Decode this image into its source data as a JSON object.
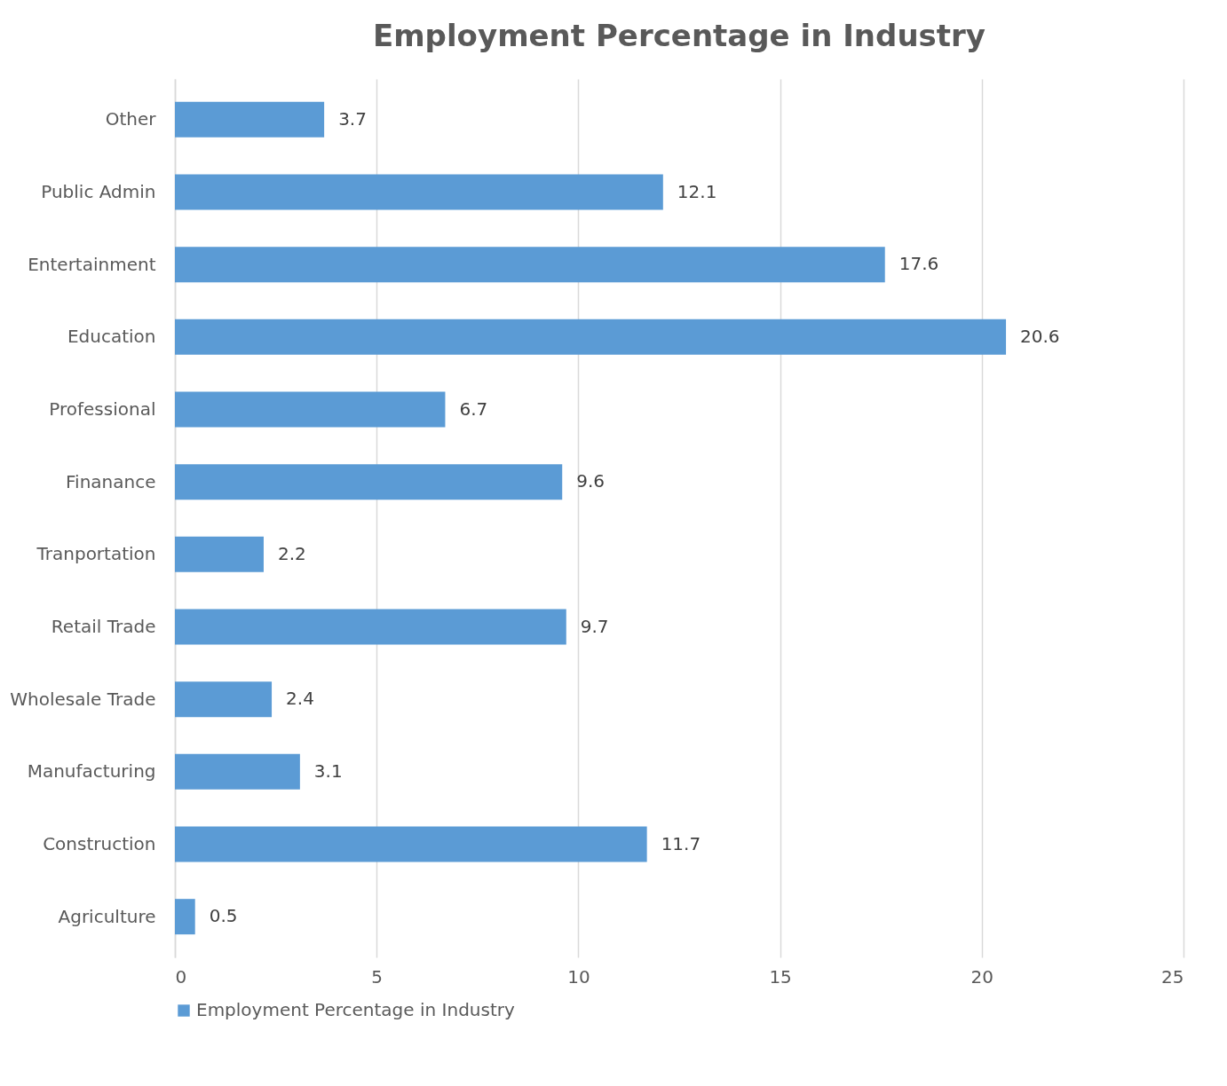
{
  "chart_data": {
    "type": "bar",
    "orientation": "horizontal",
    "title": "Employment Percentage in Industry",
    "categories": [
      "Other",
      "Public Admin",
      "Entertainment",
      "Education",
      "Professional",
      "Finanance",
      "Tranportation",
      "Retail Trade",
      "Wholesale Trade",
      "Manufacturing",
      "Construction",
      "Agriculture"
    ],
    "series": [
      {
        "name": "Employment Percentage in Industry",
        "color": "#5b9bd5",
        "values": [
          3.7,
          12.1,
          17.6,
          20.6,
          6.7,
          9.6,
          2.2,
          9.7,
          2.4,
          3.1,
          11.7,
          0.5
        ]
      }
    ],
    "xlim": [
      0,
      25
    ],
    "xticks": [
      0,
      5,
      10,
      15,
      20,
      25
    ],
    "grid": "x",
    "legend": "bottom",
    "data_labels": true
  }
}
